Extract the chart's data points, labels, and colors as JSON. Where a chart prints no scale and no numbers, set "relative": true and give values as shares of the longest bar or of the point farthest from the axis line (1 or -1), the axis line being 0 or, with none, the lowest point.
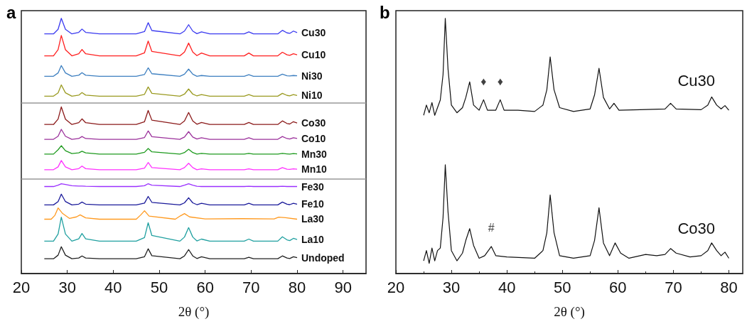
{
  "chart_data": [
    {
      "type": "line",
      "title": "a",
      "xlabel": "2θ (°)",
      "relative": true,
      "xlim": [
        20,
        95
      ],
      "xticks": [
        20,
        30,
        40,
        50,
        60,
        70,
        80,
        90
      ],
      "grid": false,
      "marker": "none",
      "line_style": "solid",
      "x": [
        25,
        27,
        28,
        28.7,
        29.6,
        31,
        32.5,
        33.2,
        34,
        37,
        45,
        46.8,
        47.6,
        48.4,
        54.5,
        55.5,
        56.4,
        57.3,
        58.2,
        59.2,
        61,
        68.5,
        69.5,
        70.5,
        75.8,
        76.8,
        77.8,
        78.4,
        79.2,
        80
      ],
      "ref_lines": [
        {
          "axis": "y",
          "value": 0.67,
          "color": "#999999"
        },
        {
          "axis": "y",
          "value": 0.368,
          "color": "#999999"
        }
      ],
      "series": [
        {
          "name": "Cu30",
          "color": "#3a3af0",
          "values": [
            0.939,
            0.939,
            0.957,
            1.0,
            0.957,
            0.939,
            0.945,
            0.958,
            0.945,
            0.939,
            0.939,
            0.948,
            0.983,
            0.952,
            0.939,
            0.95,
            0.975,
            0.95,
            0.94,
            0.947,
            0.939,
            0.939,
            0.947,
            0.939,
            0.939,
            0.953,
            0.943,
            0.941,
            0.95,
            0.944
          ]
        },
        {
          "name": "Cu10",
          "color": "#ff2020",
          "values": [
            0.853,
            0.853,
            0.877,
            0.933,
            0.877,
            0.853,
            0.861,
            0.878,
            0.861,
            0.853,
            0.853,
            0.865,
            0.911,
            0.87,
            0.853,
            0.868,
            0.903,
            0.868,
            0.854,
            0.864,
            0.853,
            0.853,
            0.864,
            0.853,
            0.853,
            0.867,
            0.857,
            0.855,
            0.861,
            0.857
          ]
        },
        {
          "name": "Ni30",
          "color": "#3d7fc0",
          "values": [
            0.773,
            0.773,
            0.786,
            0.815,
            0.786,
            0.773,
            0.777,
            0.787,
            0.777,
            0.773,
            0.773,
            0.78,
            0.806,
            0.783,
            0.773,
            0.781,
            0.801,
            0.781,
            0.773,
            0.776,
            0.773,
            0.773,
            0.779,
            0.773,
            0.773,
            0.781,
            0.775,
            0.774,
            0.776,
            0.775
          ]
        },
        {
          "name": "Ni10",
          "color": "#9a9a20",
          "values": [
            0.695,
            0.695,
            0.708,
            0.739,
            0.708,
            0.695,
            0.699,
            0.709,
            0.699,
            0.695,
            0.695,
            0.702,
            0.731,
            0.706,
            0.695,
            0.703,
            0.723,
            0.703,
            0.696,
            0.701,
            0.695,
            0.695,
            0.701,
            0.695,
            0.695,
            0.706,
            0.698,
            0.696,
            0.701,
            0.698
          ]
        },
        {
          "name": "Co30",
          "color": "#8b1a1a",
          "values": [
            0.584,
            0.584,
            0.605,
            0.653,
            0.605,
            0.584,
            0.591,
            0.606,
            0.591,
            0.584,
            0.584,
            0.595,
            0.639,
            0.601,
            0.584,
            0.598,
            0.631,
            0.598,
            0.585,
            0.592,
            0.584,
            0.584,
            0.592,
            0.584,
            0.584,
            0.598,
            0.588,
            0.586,
            0.595,
            0.59
          ]
        },
        {
          "name": "Co10",
          "color": "#9b309b",
          "values": [
            0.526,
            0.526,
            0.538,
            0.565,
            0.538,
            0.526,
            0.529,
            0.537,
            0.529,
            0.526,
            0.526,
            0.533,
            0.559,
            0.536,
            0.526,
            0.535,
            0.556,
            0.535,
            0.527,
            0.532,
            0.526,
            0.526,
            0.532,
            0.526,
            0.526,
            0.537,
            0.529,
            0.527,
            0.532,
            0.529
          ]
        },
        {
          "name": "Mn30",
          "color": "#1e9a1e",
          "values": [
            0.468,
            0.468,
            0.485,
            0.501,
            0.481,
            0.47,
            0.473,
            0.479,
            0.473,
            0.468,
            0.468,
            0.475,
            0.49,
            0.477,
            0.468,
            0.474,
            0.487,
            0.474,
            0.468,
            0.471,
            0.468,
            0.468,
            0.471,
            0.468,
            0.468,
            0.471,
            0.469,
            0.468,
            0.47,
            0.469
          ]
        },
        {
          "name": "Mn10",
          "color": "#ff30ff",
          "values": [
            0.407,
            0.407,
            0.418,
            0.443,
            0.418,
            0.407,
            0.411,
            0.421,
            0.411,
            0.407,
            0.407,
            0.413,
            0.435,
            0.415,
            0.407,
            0.415,
            0.432,
            0.415,
            0.407,
            0.41,
            0.407,
            0.407,
            0.41,
            0.407,
            0.407,
            0.415,
            0.409,
            0.408,
            0.41,
            0.409
          ]
        },
        {
          "name": "Fe30",
          "color": "#9a30ff",
          "values": [
            0.341,
            0.341,
            0.346,
            0.352,
            0.349,
            0.344,
            0.343,
            0.343,
            0.342,
            0.341,
            0.341,
            0.344,
            0.352,
            0.346,
            0.341,
            0.346,
            0.352,
            0.346,
            0.342,
            0.341,
            0.341,
            0.341,
            0.342,
            0.341,
            0.341,
            0.342,
            0.341,
            0.341,
            0.341,
            0.341
          ]
        },
        {
          "name": "Fe10",
          "color": "#1a1a9a",
          "values": [
            0.269,
            0.269,
            0.282,
            0.311,
            0.282,
            0.269,
            0.272,
            0.28,
            0.272,
            0.269,
            0.269,
            0.276,
            0.302,
            0.279,
            0.269,
            0.277,
            0.297,
            0.277,
            0.27,
            0.275,
            0.269,
            0.269,
            0.275,
            0.269,
            0.269,
            0.28,
            0.272,
            0.27,
            0.275,
            0.272
          ]
        },
        {
          "name": "La30",
          "color": "#ff9a20",
          "x": [
            25,
            26.5,
            27.3,
            28,
            29,
            30.5,
            32,
            32.8,
            34,
            37,
            45,
            46,
            46.8,
            47.8,
            53.5,
            54.6,
            55.5,
            56.6,
            60,
            68,
            75,
            76,
            77.5,
            80
          ],
          "values": [
            0.213,
            0.213,
            0.228,
            0.257,
            0.235,
            0.216,
            0.222,
            0.23,
            0.218,
            0.213,
            0.213,
            0.23,
            0.246,
            0.225,
            0.213,
            0.226,
            0.235,
            0.222,
            0.214,
            0.215,
            0.214,
            0.221,
            0.219,
            0.213
          ]
        },
        {
          "name": "La10",
          "color": "#20a0a0",
          "values": [
            0.127,
            0.127,
            0.155,
            0.221,
            0.155,
            0.127,
            0.136,
            0.157,
            0.136,
            0.127,
            0.127,
            0.141,
            0.199,
            0.149,
            0.127,
            0.143,
            0.18,
            0.143,
            0.128,
            0.135,
            0.127,
            0.127,
            0.135,
            0.127,
            0.127,
            0.144,
            0.132,
            0.129,
            0.138,
            0.133
          ]
        },
        {
          "name": "Undoped",
          "color": "#202020",
          "values": [
            0.058,
            0.058,
            0.072,
            0.105,
            0.072,
            0.058,
            0.061,
            0.069,
            0.061,
            0.058,
            0.058,
            0.066,
            0.097,
            0.07,
            0.058,
            0.069,
            0.094,
            0.069,
            0.059,
            0.066,
            0.058,
            0.058,
            0.064,
            0.058,
            0.058,
            0.069,
            0.061,
            0.059,
            0.066,
            0.062
          ]
        }
      ]
    },
    {
      "type": "line",
      "title": "b",
      "xlabel": "2θ (°)",
      "relative": true,
      "xlim": [
        20,
        82.5
      ],
      "xticks": [
        20,
        30,
        40,
        50,
        60,
        70,
        80
      ],
      "grid": false,
      "marker": "none",
      "line_style": "solid",
      "annotations": [
        {
          "text": "♦",
          "x": 35.8,
          "y": 0.681
        },
        {
          "text": "♦",
          "x": 38.8,
          "y": 0.681
        },
        {
          "text": "#",
          "x": 37.2,
          "y": 0.106
        }
      ],
      "series": [
        {
          "name": "Cu30",
          "color": "#111111",
          "x": [
            25,
            25.5,
            26,
            26.5,
            27,
            27.5,
            28,
            28.5,
            28.9,
            29.4,
            30,
            31,
            32,
            32.6,
            33.3,
            34,
            35,
            35.8,
            36.5,
            38,
            38.8,
            39.5,
            42,
            45,
            46.5,
            47.2,
            47.8,
            48.5,
            49.5,
            52,
            55,
            55.8,
            56.6,
            57.4,
            58.5,
            59.3,
            60.2,
            64,
            68.5,
            69.5,
            70.5,
            75,
            76.2,
            76.9,
            77.8,
            78.6,
            79.3,
            80
          ],
          "values": [
            0.62,
            0.66,
            0.63,
            0.67,
            0.62,
            0.65,
            0.68,
            0.78,
            1.0,
            0.8,
            0.66,
            0.63,
            0.65,
            0.69,
            0.751,
            0.66,
            0.64,
            0.681,
            0.64,
            0.64,
            0.681,
            0.64,
            0.64,
            0.635,
            0.66,
            0.72,
            0.849,
            0.72,
            0.65,
            0.635,
            0.645,
            0.7,
            0.804,
            0.69,
            0.645,
            0.667,
            0.64,
            0.642,
            0.645,
            0.667,
            0.645,
            0.642,
            0.66,
            0.692,
            0.66,
            0.645,
            0.658,
            0.64
          ]
        },
        {
          "name": "Co30",
          "color": "#111111",
          "x": [
            25,
            25.5,
            26,
            26.5,
            27,
            27.5,
            28,
            28.5,
            28.9,
            29.4,
            30,
            31,
            32,
            32.6,
            33.3,
            34,
            35,
            36,
            37.2,
            38,
            40,
            45,
            46.5,
            47.2,
            47.8,
            48.5,
            49.5,
            52,
            55,
            55.8,
            56.6,
            57.4,
            58.5,
            59.5,
            60.5,
            62,
            65,
            67,
            68.5,
            69.5,
            70.5,
            73,
            75,
            76.2,
            76.9,
            77.8,
            78.6,
            79.3,
            80
          ],
          "values": [
            0.05,
            0.09,
            0.04,
            0.1,
            0.05,
            0.09,
            0.1,
            0.22,
            0.426,
            0.24,
            0.09,
            0.05,
            0.08,
            0.13,
            0.176,
            0.11,
            0.06,
            0.07,
            0.106,
            0.07,
            0.065,
            0.06,
            0.09,
            0.16,
            0.308,
            0.16,
            0.07,
            0.06,
            0.07,
            0.13,
            0.258,
            0.12,
            0.07,
            0.12,
            0.08,
            0.06,
            0.075,
            0.07,
            0.075,
            0.098,
            0.08,
            0.065,
            0.07,
            0.09,
            0.12,
            0.09,
            0.07,
            0.084,
            0.06
          ]
        }
      ]
    }
  ]
}
